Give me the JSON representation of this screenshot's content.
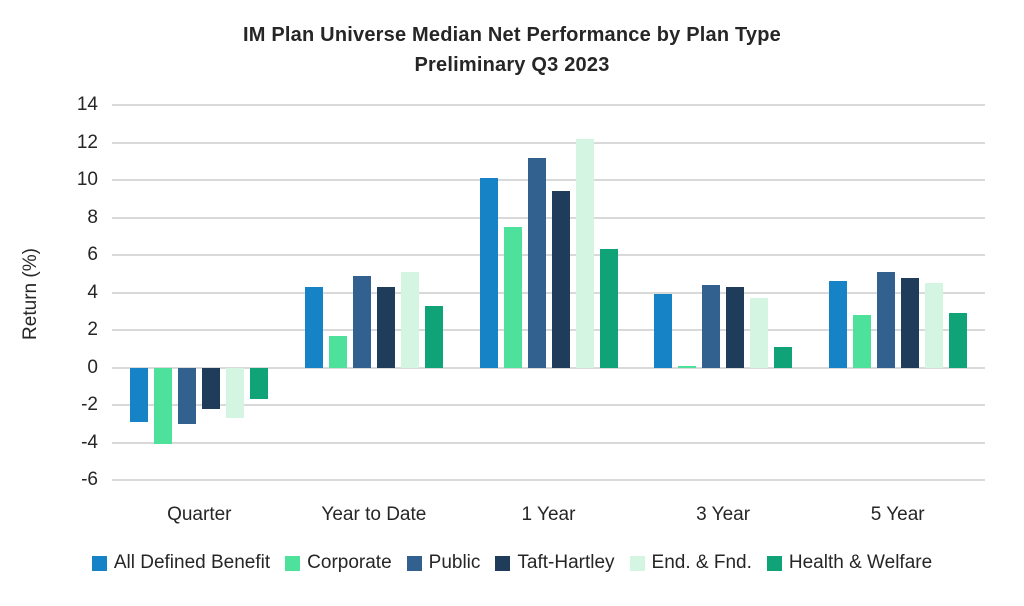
{
  "chart_data": {
    "type": "bar",
    "title": "IM Plan Universe Median Net Performance by Plan Type",
    "subtitle": "Preliminary Q3 2023",
    "xlabel": "",
    "ylabel": "Return (%)",
    "ylim": [
      -6,
      14
    ],
    "yticks": [
      14,
      12,
      10,
      8,
      6,
      4,
      2,
      0,
      -2,
      -4,
      -6
    ],
    "grid": true,
    "legend_position": "bottom",
    "background_color": "#ffffff",
    "gridline_color": "#d9d9d9",
    "text_color": "#262626",
    "categories": [
      "Quarter",
      "Year to Date",
      "1 Year",
      "3 Year",
      "5 Year"
    ],
    "series": [
      {
        "name": "All Defined Benefit",
        "color": "#1583C5",
        "values": [
          -2.9,
          4.3,
          10.1,
          3.9,
          4.6
        ]
      },
      {
        "name": "Corporate",
        "color": "#4DE19B",
        "values": [
          -4.1,
          1.7,
          7.5,
          0.1,
          2.8
        ]
      },
      {
        "name": "Public",
        "color": "#33618F",
        "values": [
          -3.0,
          4.9,
          11.2,
          4.4,
          5.1
        ]
      },
      {
        "name": "Taft-Hartley",
        "color": "#1F3D5A",
        "values": [
          -2.2,
          4.3,
          9.4,
          4.3,
          4.8
        ]
      },
      {
        "name": "End. & Fnd.",
        "color": "#D3F5E2",
        "values": [
          -2.7,
          5.1,
          12.2,
          3.7,
          4.5
        ]
      },
      {
        "name": "Health & Welfare",
        "color": "#10A377",
        "values": [
          -1.7,
          3.3,
          6.3,
          1.1,
          2.9
        ]
      }
    ]
  }
}
